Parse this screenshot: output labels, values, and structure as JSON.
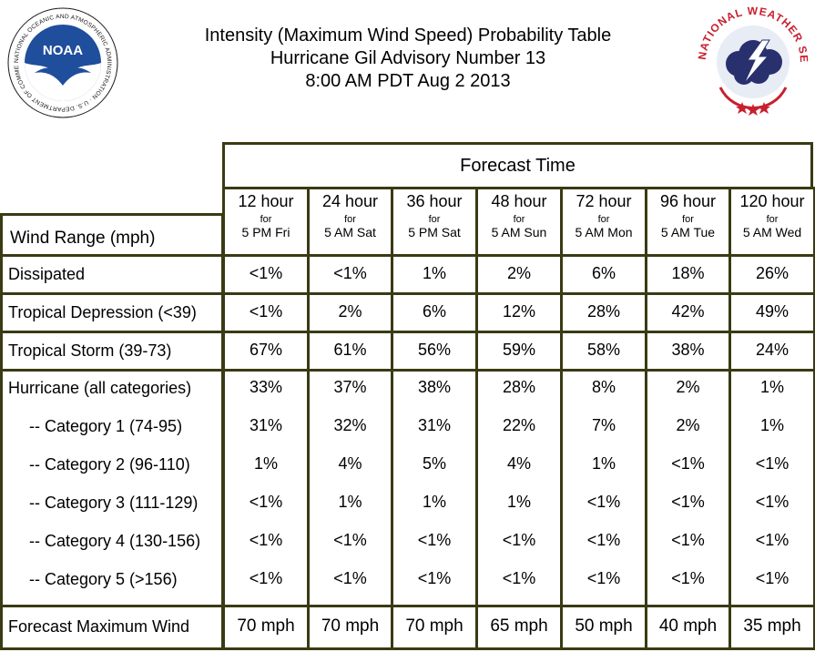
{
  "title": {
    "line1": "Intensity (Maximum Wind Speed) Probability Table",
    "line2": "Hurricane Gil Advisory Number 13",
    "line3": "8:00 AM PDT Aug 2 2013"
  },
  "logos": {
    "noaa_text": "NOAA",
    "noaa_ring": "NATIONAL OCEANIC AND ATMOSPHERIC ADMINISTRATION · U.S. DEPARTMENT OF COMMERCE",
    "nws_ring": "NATIONAL WEATHER SERVICE"
  },
  "colors": {
    "border": "#3a3a14",
    "noaa_blue": "#1f4e9c",
    "nws_red": "#c8202f",
    "nws_cloud": "#28306e"
  },
  "chart_data": {
    "type": "table",
    "title": "Intensity (Maximum Wind Speed) Probability Table",
    "header_group": "Forecast Time",
    "row_header": "Wind Range (mph)",
    "columns": [
      {
        "hour": "12 hour",
        "for": "for",
        "time": "5 PM Fri"
      },
      {
        "hour": "24 hour",
        "for": "for",
        "time": "5 AM Sat"
      },
      {
        "hour": "36 hour",
        "for": "for",
        "time": "5 PM Sat"
      },
      {
        "hour": "48 hour",
        "for": "for",
        "time": "5 AM Sun"
      },
      {
        "hour": "72 hour",
        "for": "for",
        "time": "5 AM Mon"
      },
      {
        "hour": "96 hour",
        "for": "for",
        "time": "5 AM Tue"
      },
      {
        "hour": "120 hour",
        "for": "for",
        "time": "5 AM Wed"
      }
    ],
    "rows": [
      {
        "label": "Dissipated",
        "values": [
          "<1%",
          "<1%",
          "1%",
          "2%",
          "6%",
          "18%",
          "26%"
        ]
      },
      {
        "label": "Tropical Depression (<39)",
        "values": [
          "<1%",
          "2%",
          "6%",
          "12%",
          "28%",
          "42%",
          "49%"
        ]
      },
      {
        "label": "Tropical Storm (39-73)",
        "values": [
          "67%",
          "61%",
          "56%",
          "59%",
          "58%",
          "38%",
          "24%"
        ]
      },
      {
        "label": "Hurricane (all categories)",
        "values": [
          "33%",
          "37%",
          "38%",
          "28%",
          "8%",
          "2%",
          "1%"
        ]
      },
      {
        "label": "-- Category 1 (74-95)",
        "values": [
          "31%",
          "32%",
          "31%",
          "22%",
          "7%",
          "2%",
          "1%"
        ]
      },
      {
        "label": "-- Category 2 (96-110)",
        "values": [
          "1%",
          "4%",
          "5%",
          "4%",
          "1%",
          "<1%",
          "<1%"
        ]
      },
      {
        "label": "-- Category 3 (111-129)",
        "values": [
          "<1%",
          "1%",
          "1%",
          "1%",
          "<1%",
          "<1%",
          "<1%"
        ]
      },
      {
        "label": "-- Category 4 (130-156)",
        "values": [
          "<1%",
          "<1%",
          "<1%",
          "<1%",
          "<1%",
          "<1%",
          "<1%"
        ]
      },
      {
        "label": "-- Category 5 (>156)",
        "values": [
          "<1%",
          "<1%",
          "<1%",
          "<1%",
          "<1%",
          "<1%",
          "<1%"
        ]
      },
      {
        "label": "Forecast Maximum Wind",
        "values": [
          "70 mph",
          "70 mph",
          "70 mph",
          "65 mph",
          "50 mph",
          "40 mph",
          "35 mph"
        ]
      }
    ]
  }
}
